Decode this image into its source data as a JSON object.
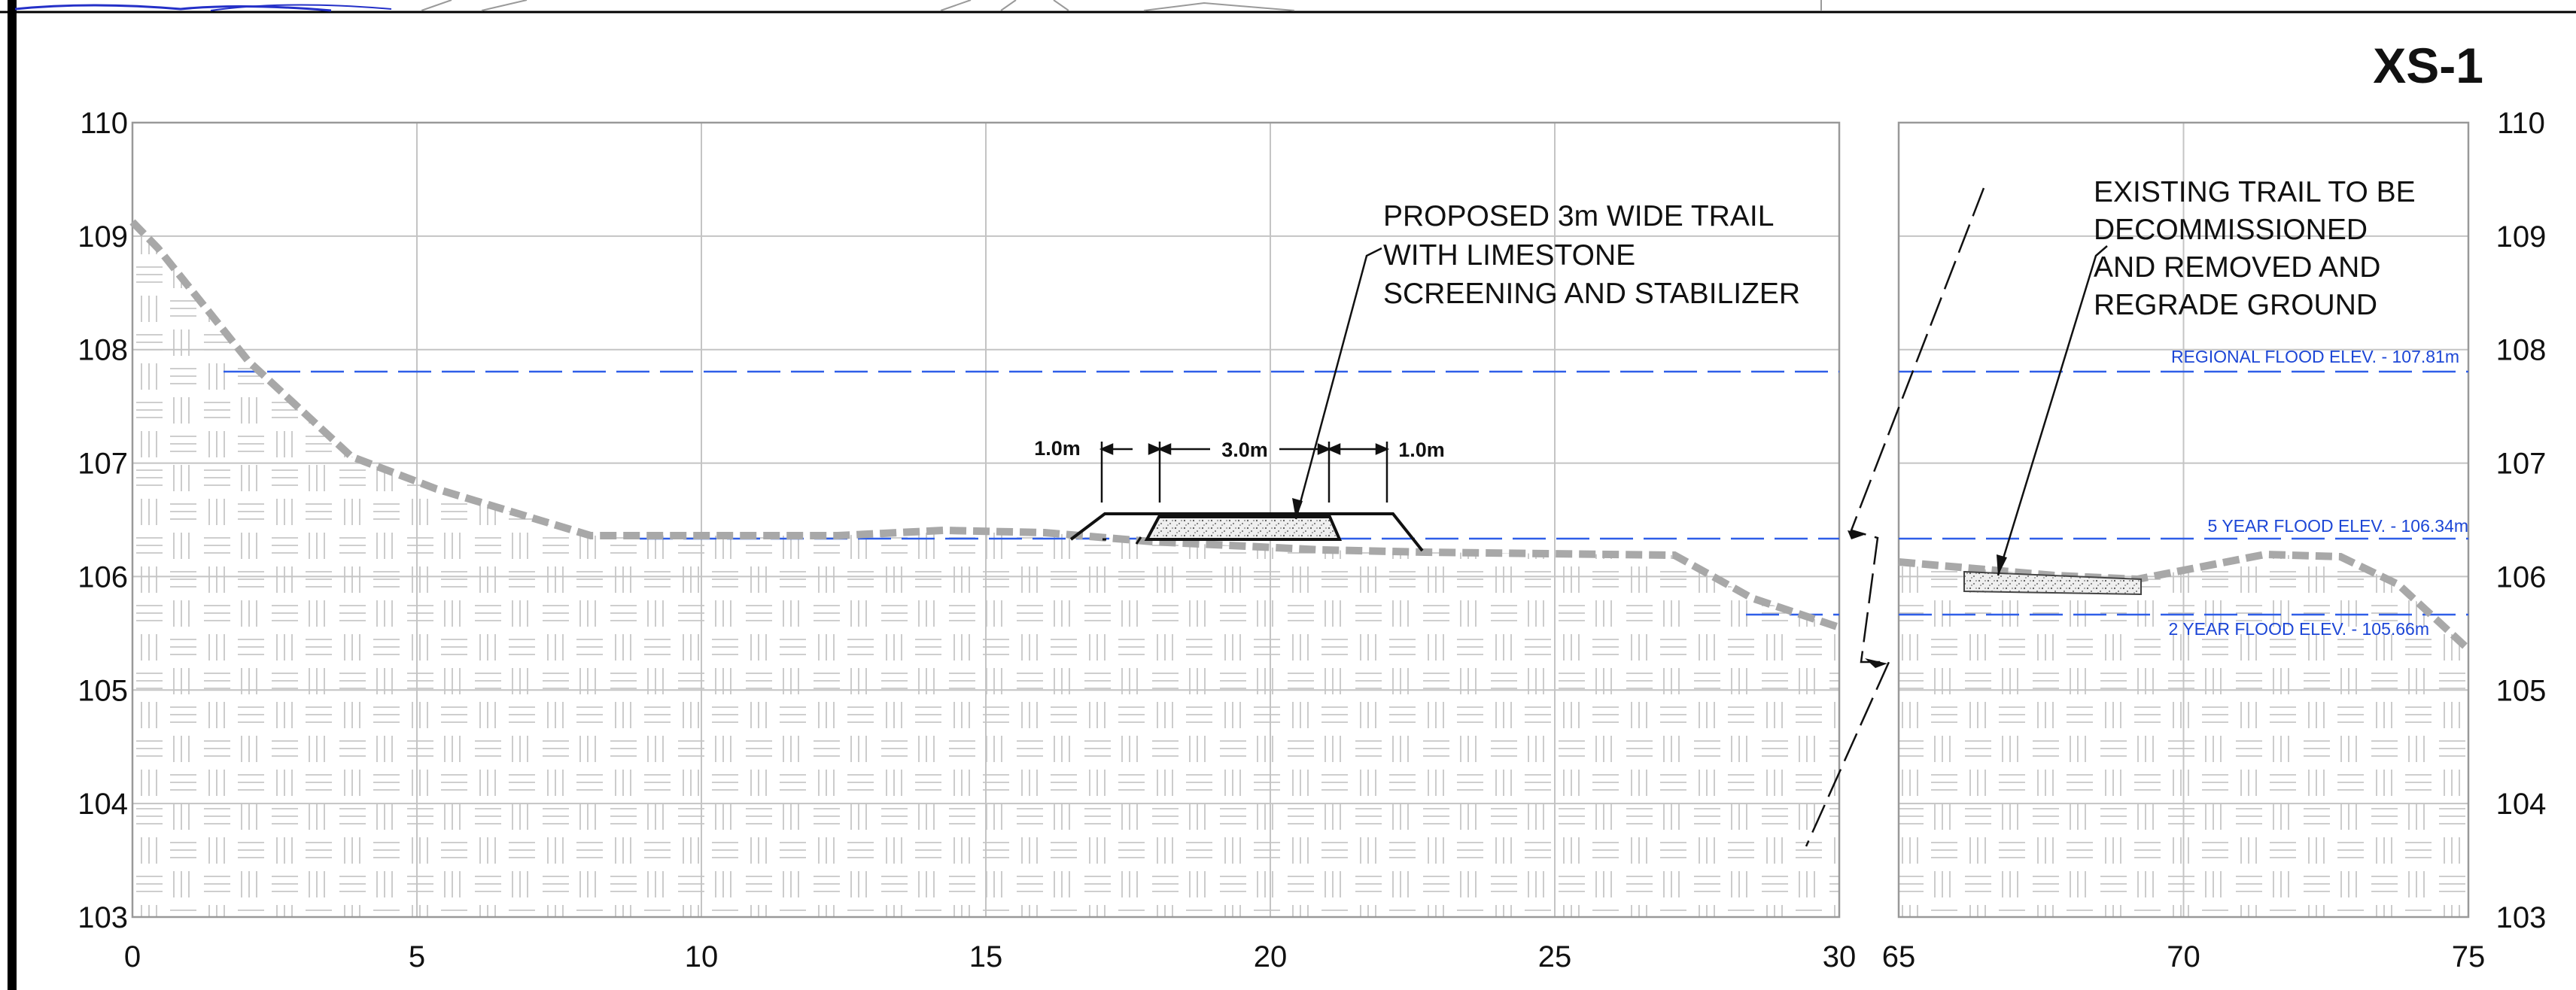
{
  "title": "XS-1",
  "y_ticks": [
    "110",
    "109",
    "108",
    "107",
    "106",
    "105",
    "104",
    "103"
  ],
  "x_ticks_left": [
    "0",
    "5",
    "10",
    "15",
    "20",
    "25",
    "30"
  ],
  "x_ticks_right": [
    "65",
    "70",
    "75"
  ],
  "note_proposed": [
    "PROPOSED 3m WIDE TRAIL",
    "WITH LIMESTONE",
    "SCREENING AND STABILIZER"
  ],
  "note_existing": [
    "EXISTING TRAIL TO BE",
    "DECOMMISSIONED",
    "AND REMOVED AND",
    "REGRADE GROUND"
  ],
  "dimensions": {
    "left": "1.0m",
    "center": "3.0m",
    "right": "1.0m"
  },
  "flood_levels": {
    "regional": "REGIONAL FLOOD ELEV. - 107.81m",
    "five_year": "5 YEAR FLOOD ELEV. - 106.34m",
    "two_year": "2 YEAR FLOOD ELEV. - 105.66m"
  },
  "colors": {
    "flood_line": "#2f5ee8",
    "ground_line": "#a8a8a8",
    "grid": "#c4c4c4"
  }
}
